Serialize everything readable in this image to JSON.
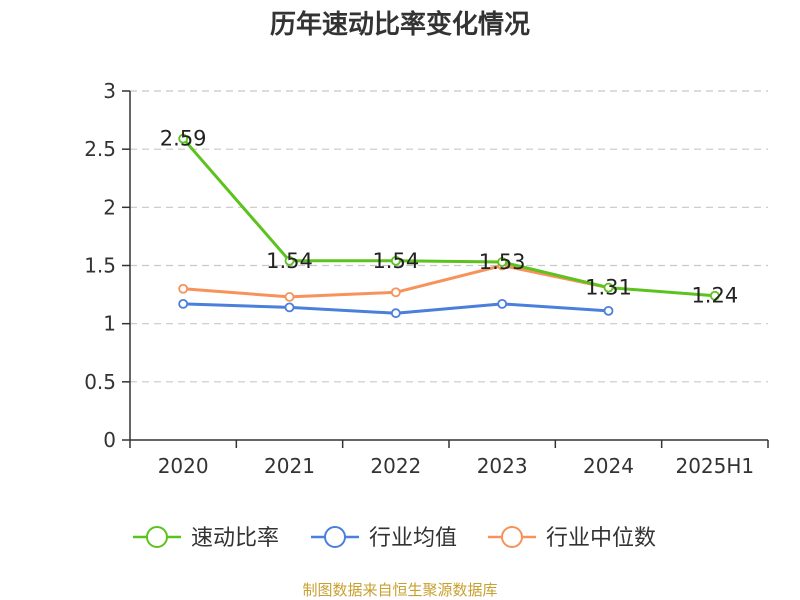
{
  "chart_data": {
    "type": "line",
    "title": "历年速动比率变化情况",
    "categories": [
      "2020",
      "2021",
      "2022",
      "2023",
      "2024",
      "2025H1"
    ],
    "ylim": [
      0,
      3
    ],
    "yticks": [
      "0",
      "0.5",
      "1",
      "1.5",
      "2",
      "2.5",
      "3"
    ],
    "grid": true,
    "legend_position": "bottom",
    "series": [
      {
        "name": "速动比率",
        "color": "#5cc21e",
        "values": [
          2.59,
          1.54,
          1.54,
          1.53,
          1.31,
          1.24
        ],
        "labels": [
          "2.59",
          "1.54",
          "1.54",
          "1.53",
          "1.31",
          "1.24"
        ]
      },
      {
        "name": "行业均值",
        "color": "#4a7fdc",
        "values": [
          1.17,
          1.14,
          1.09,
          1.17,
          1.11,
          null
        ]
      },
      {
        "name": "行业中位数",
        "color": "#f7925a",
        "values": [
          1.3,
          1.23,
          1.27,
          1.5,
          1.31,
          null
        ]
      }
    ]
  },
  "source": "制图数据来自恒生聚源数据库"
}
